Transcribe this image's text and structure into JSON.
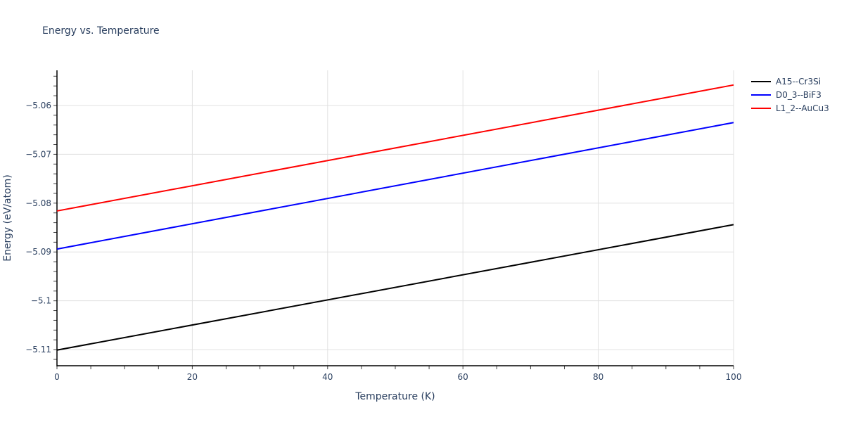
{
  "chart_data": {
    "type": "line",
    "title": "Energy vs. Temperature",
    "xlabel": "Temperature (K)",
    "ylabel": "Energy (eV/atom)",
    "xlim": [
      0,
      100
    ],
    "ylim": [
      -5.1133,
      -5.0528
    ],
    "x_ticks": [
      0,
      20,
      40,
      60,
      80,
      100
    ],
    "x_tick_labels": [
      "0",
      "20",
      "40",
      "60",
      "80",
      "100"
    ],
    "y_ticks": [
      -5.06,
      -5.07,
      -5.08,
      -5.09,
      -5.1,
      -5.11
    ],
    "y_tick_labels": [
      "−5.06",
      "−5.07",
      "−5.08",
      "−5.09",
      "−5.1",
      "−5.11"
    ],
    "grid": true,
    "legend_position": "right",
    "x": [
      0,
      100
    ],
    "series": [
      {
        "name": "A15--Cr3Si",
        "color": "#000000",
        "values": [
          -5.1101,
          -5.0844
        ]
      },
      {
        "name": "D0_3--BiF3",
        "color": "#0000ff",
        "values": [
          -5.0894,
          -5.0635
        ]
      },
      {
        "name": "L1_2--AuCu3",
        "color": "#ff0000",
        "values": [
          -5.0816,
          -5.0558
        ]
      }
    ]
  }
}
